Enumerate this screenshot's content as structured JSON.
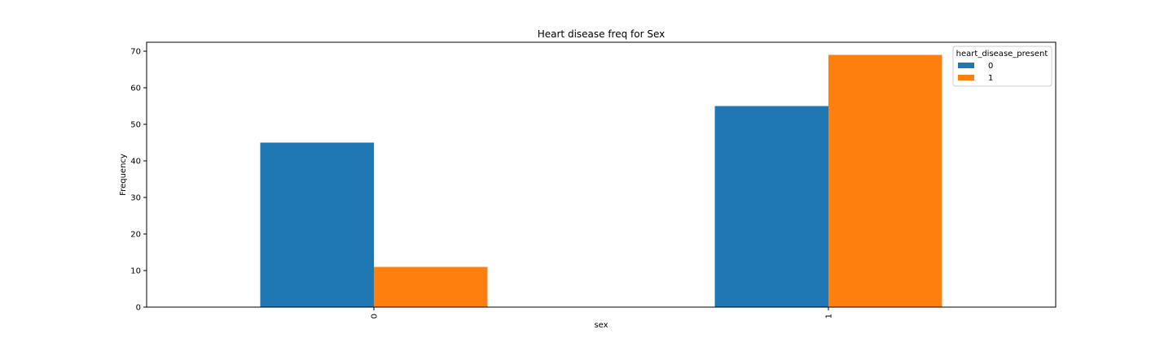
{
  "chart_data": {
    "type": "bar",
    "title": "Heart disease freq for Sex",
    "xlabel": "sex",
    "ylabel": "Frequency",
    "categories": [
      "0",
      "1"
    ],
    "series": [
      {
        "name": "0",
        "values": [
          45,
          55
        ],
        "color": "#1f77b4"
      },
      {
        "name": "1",
        "values": [
          11,
          69
        ],
        "color": "#ff7f0e"
      }
    ],
    "ylim": [
      0,
      72.45
    ],
    "yticks": [
      0,
      10,
      20,
      30,
      40,
      50,
      60,
      70
    ],
    "legend": {
      "title": "heart_disease_present",
      "placement": "top-right"
    },
    "grid": false
  }
}
